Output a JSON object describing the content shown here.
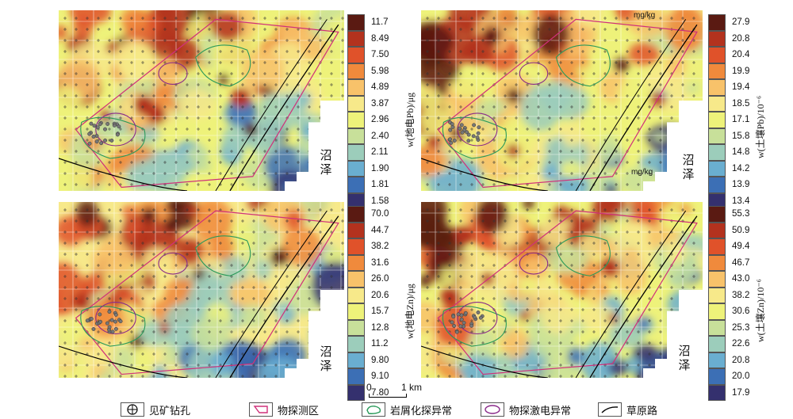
{
  "panels": [
    {
      "id": "pb-elec",
      "place": [
        "沼",
        "泽"
      ],
      "unit_tag": ""
    },
    {
      "id": "pb-soil",
      "place": [
        "沼",
        "泽"
      ],
      "unit_tag": "mg/kg",
      "unit_tag2": "mg/kg"
    },
    {
      "id": "zn-elec",
      "place": [
        "沼",
        "泽"
      ],
      "unit_tag": ""
    },
    {
      "id": "zn-soil",
      "place": [
        "沼",
        "泽"
      ],
      "unit_tag": ""
    }
  ],
  "colorbars": [
    {
      "title": "w(地电Pb)/μg",
      "labels": [
        "11.7",
        "8.49",
        "7.50",
        "5.98",
        "4.89",
        "3.87",
        "2.96",
        "2.40",
        "2.11",
        "1.90",
        "1.81",
        "1.58"
      ]
    },
    {
      "title": "w(土壤Pb)/10⁻⁶",
      "labels": [
        "27.9",
        "20.8",
        "20.4",
        "19.9",
        "19.4",
        "18.5",
        "17.1",
        "15.8",
        "14.8",
        "14.2",
        "13.9",
        "13.4"
      ]
    },
    {
      "title": "w(地电Zn)/μg",
      "labels": [
        "70.0",
        "44.7",
        "38.2",
        "31.6",
        "26.0",
        "20.6",
        "15.7",
        "12.8",
        "11.2",
        "9.80",
        "9.10",
        "7.80"
      ]
    },
    {
      "title": "w(土壤Zn)/10⁻⁶",
      "labels": [
        "55.3",
        "50.9",
        "49.4",
        "46.7",
        "43.0",
        "38.2",
        "30.6",
        "25.3",
        "22.6",
        "20.8",
        "20.0",
        "17.9"
      ]
    }
  ],
  "colors": [
    "#5a1a12",
    "#b3321e",
    "#e0522a",
    "#f08a3c",
    "#f8c26a",
    "#f7e98a",
    "#eef27a",
    "#c8e09a",
    "#9ccdbb",
    "#6aaed0",
    "#3c6fb5",
    "#34306e"
  ],
  "scale": {
    "zero": "0",
    "one": "1 km"
  },
  "legend": [
    {
      "icon": "drill-hole-icon",
      "label": "见矿钻孔"
    },
    {
      "icon": "survey-area-icon",
      "label": "物探测区"
    },
    {
      "icon": "rock-anomaly-icon",
      "label": "岩屑化探异常"
    },
    {
      "icon": "ip-anomaly-icon",
      "label": "物探激电异常"
    },
    {
      "icon": "road-icon",
      "label": "草原路"
    }
  ]
}
